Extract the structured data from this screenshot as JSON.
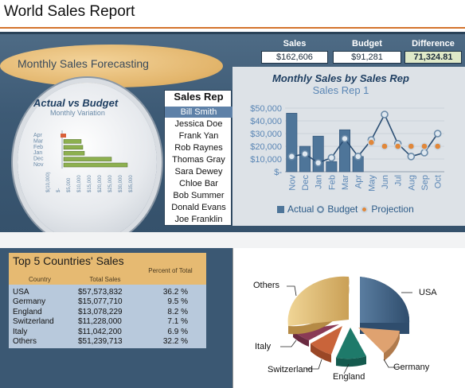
{
  "header": {
    "title": "World Sales Report"
  },
  "kpis": {
    "sales_label": "Sales",
    "sales_value": "$162,606",
    "budget_label": "Budget",
    "budget_value": "$91,281",
    "difference_label": "Difference",
    "difference_value": "71,324.81"
  },
  "forecast": {
    "title": "Monthly Sales Forecasting"
  },
  "actual_vs_budget": {
    "title": "Actual vs Budget",
    "subtitle": "Monthly Variation",
    "months": [
      "Apr",
      "Mar",
      "Feb",
      "Jan",
      "Dec",
      "Nov"
    ],
    "x_ticks": [
      "$(10,000)",
      "$-",
      "$5,000",
      "$10,000",
      "$15,000",
      "$20,000",
      "$25,000",
      "$30,000",
      "$35,000"
    ],
    "colors": {
      "bar": "#8db04f",
      "neg": "#d9603a"
    }
  },
  "sales_rep": {
    "title": "Sales Rep",
    "items": [
      "Bill Smith",
      "Jessica Doe",
      "Frank Yan",
      "Rob Raynes",
      "Thomas Gray",
      "Sara Dewey",
      "Chloe Bar",
      "Bob Summer",
      "Donald Evans",
      "Joe Franklin"
    ],
    "selected_index": 0
  },
  "monthly_chart": {
    "title": "Monthly Sales by Sales Rep",
    "subtitle": "Sales Rep 1",
    "legend": {
      "actual": "Actual",
      "budget": "Budget",
      "projection": "Projection"
    },
    "colors": {
      "actual": "#4e7599",
      "budget": "#dfe8f0",
      "projection": "#e0873a",
      "line": "#2c4f74"
    }
  },
  "top5": {
    "title": "Top 5 Countries' Sales",
    "columns": [
      "Country",
      "Total Sales",
      "Percent of Total"
    ],
    "rows": [
      [
        "USA",
        "$57,573,832",
        "36.2 %"
      ],
      [
        "Germany",
        "$15,077,710",
        "9.5 %"
      ],
      [
        "England",
        "$13,078,229",
        "8.2 %"
      ],
      [
        "Switzerland",
        "$11,228,000",
        "7.1 %"
      ],
      [
        "Italy",
        "$11,042,200",
        "6.9 %"
      ],
      [
        "Others",
        "$51,239,713",
        "32.2 %"
      ]
    ]
  },
  "pie": {
    "labels": {
      "others": "Others",
      "usa": "USA",
      "italy": "Italy",
      "germany": "Germany",
      "switzerland": "Switzerland",
      "england": "England"
    },
    "colors": {
      "usa": "#3e5f80",
      "germany": "#dfa270",
      "england": "#1e7a6a",
      "switzerland": "#c9643a",
      "italy": "#8a3a55",
      "others": "#e1bb72"
    }
  },
  "chart_data": {
    "type": "bar",
    "title": "Monthly Sales by Sales Rep",
    "subtitle": "Sales Rep 1",
    "categories": [
      "Nov",
      "Dec",
      "Jan",
      "Feb",
      "Mar",
      "Apr",
      "May",
      "Jun",
      "Jul",
      "Aug",
      "Sep",
      "Oct"
    ],
    "y_ticks": [
      "$-",
      "$10,000",
      "$20,000",
      "$30,000",
      "$40,000",
      "$50,000"
    ],
    "ylim": [
      0,
      50000
    ],
    "series": [
      {
        "name": "Actual",
        "type": "bar",
        "values": [
          46000,
          20000,
          28000,
          8000,
          33000,
          12000,
          null,
          null,
          null,
          null,
          null,
          null
        ]
      },
      {
        "name": "Budget",
        "type": "line",
        "values": [
          12000,
          14000,
          7000,
          11000,
          26000,
          12000,
          25000,
          45000,
          22000,
          12000,
          15000,
          30000
        ]
      },
      {
        "name": "Projection",
        "type": "line",
        "values": [
          null,
          null,
          null,
          null,
          null,
          null,
          23000,
          20000,
          20000,
          20000,
          20000,
          20000
        ]
      }
    ],
    "legend_position": "bottom"
  }
}
